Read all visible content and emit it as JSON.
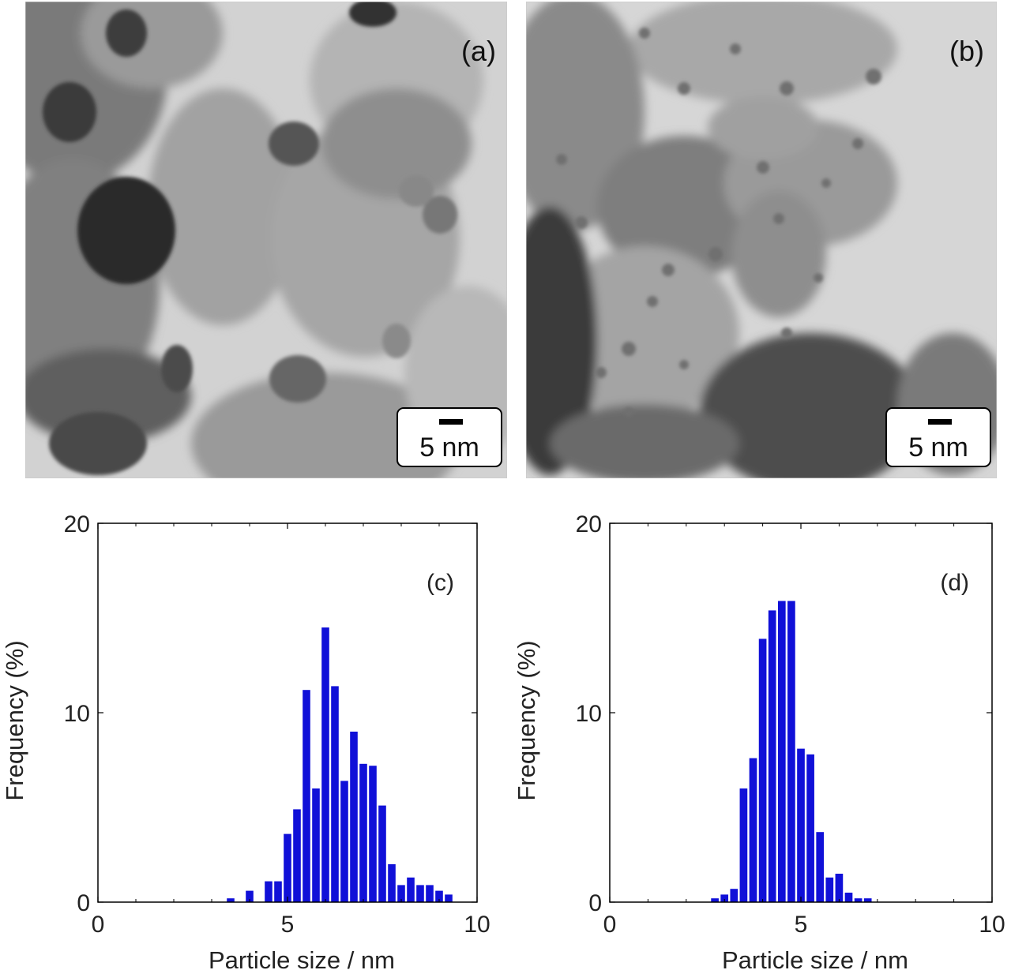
{
  "micrographs": [
    {
      "panel_label": "(a)",
      "scale_bar_label": "5 nm"
    },
    {
      "panel_label": "(b)",
      "scale_bar_label": "5 nm"
    }
  ],
  "chart_data": [
    {
      "type": "bar",
      "panel_label": "(c)",
      "xlabel": "Particle size / nm",
      "ylabel": "Frequency (%)",
      "xlim": [
        0,
        10
      ],
      "ylim": [
        0,
        20
      ],
      "xticks": [
        "0",
        "5",
        "10"
      ],
      "yticks": [
        "0",
        "10",
        "20"
      ],
      "bar_width": 0.2,
      "bar_color": "#1010d8",
      "x": [
        3.5,
        4.0,
        4.5,
        4.75,
        5.0,
        5.25,
        5.5,
        5.75,
        6.0,
        6.25,
        6.5,
        6.75,
        7.0,
        7.25,
        7.5,
        7.75,
        8.0,
        8.25,
        8.5,
        8.75,
        9.0,
        9.25
      ],
      "values": [
        0.2,
        0.6,
        1.1,
        1.1,
        3.6,
        4.9,
        11.2,
        6.0,
        14.5,
        11.4,
        6.4,
        9.0,
        7.3,
        7.2,
        5.1,
        2.0,
        0.9,
        1.3,
        0.9,
        0.9,
        0.6,
        0.4
      ]
    },
    {
      "type": "bar",
      "panel_label": "(d)",
      "xlabel": "Particle size / nm",
      "ylabel": "Frequency (%)",
      "xlim": [
        0,
        10
      ],
      "ylim": [
        0,
        20
      ],
      "xticks": [
        "0",
        "5",
        "10"
      ],
      "yticks": [
        "0",
        "10",
        "20"
      ],
      "bar_width": 0.2,
      "bar_color": "#1010d8",
      "x": [
        2.75,
        3.0,
        3.25,
        3.5,
        3.75,
        4.0,
        4.25,
        4.5,
        4.75,
        5.0,
        5.25,
        5.5,
        5.75,
        6.0,
        6.25,
        6.5,
        6.75
      ],
      "values": [
        0.2,
        0.4,
        0.7,
        6.0,
        7.6,
        13.9,
        15.4,
        15.9,
        15.9,
        8.1,
        7.8,
        3.7,
        1.3,
        1.5,
        0.5,
        0.2,
        0.2
      ]
    }
  ]
}
